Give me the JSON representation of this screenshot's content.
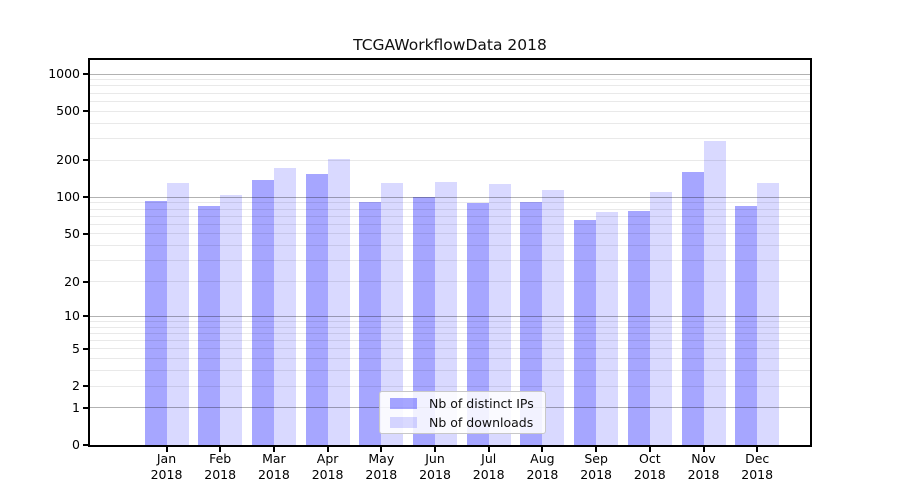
{
  "title": "TCGAWorkflowData 2018",
  "chart_data": {
    "type": "bar",
    "title": "TCGAWorkflowData 2018",
    "y_scale": "symlog (log10(1+x))",
    "ylim": [
      0,
      1300
    ],
    "grid": true,
    "y_ticks": [
      {
        "value": 0,
        "label": "0",
        "major": false
      },
      {
        "value": 1,
        "label": "1",
        "major": true
      },
      {
        "value": 2,
        "label": "2",
        "major": false
      },
      {
        "value": 5,
        "label": "5",
        "major": false
      },
      {
        "value": 10,
        "label": "10",
        "major": true
      },
      {
        "value": 20,
        "label": "20",
        "major": false
      },
      {
        "value": 50,
        "label": "50",
        "major": false
      },
      {
        "value": 100,
        "label": "100",
        "major": true
      },
      {
        "value": 200,
        "label": "200",
        "major": false
      },
      {
        "value": 500,
        "label": "500",
        "major": false
      },
      {
        "value": 1000,
        "label": "1000",
        "major": true
      }
    ],
    "minor_grid_values": [
      2,
      3,
      4,
      5,
      6,
      7,
      8,
      9,
      20,
      30,
      40,
      50,
      60,
      70,
      80,
      90,
      200,
      300,
      400,
      500,
      600,
      700,
      800,
      900
    ],
    "categories": [
      "Jan",
      "Feb",
      "Mar",
      "Apr",
      "May",
      "Jun",
      "Jul",
      "Aug",
      "Sep",
      "Oct",
      "Nov",
      "Dec"
    ],
    "x_tick_year": "2018",
    "series": [
      {
        "name": "Nb of distinct IPs",
        "color": "#a6a6ff",
        "css_color": "rgba(0,0,255,0.35)",
        "values": [
          93,
          85,
          138,
          155,
          92,
          100,
          89,
          92,
          65,
          77,
          159,
          85
        ]
      },
      {
        "name": "Nb of downloads",
        "color": "#d9d9ff",
        "css_color": "rgba(0,0,255,0.15)",
        "values": [
          130,
          105,
          172,
          203,
          131,
          134,
          127,
          114,
          75,
          111,
          287,
          131
        ]
      }
    ],
    "legend_position": "bottom-center",
    "grid_colors": {
      "major": "#b3b3b3",
      "minor": "#e9e9e9"
    }
  }
}
